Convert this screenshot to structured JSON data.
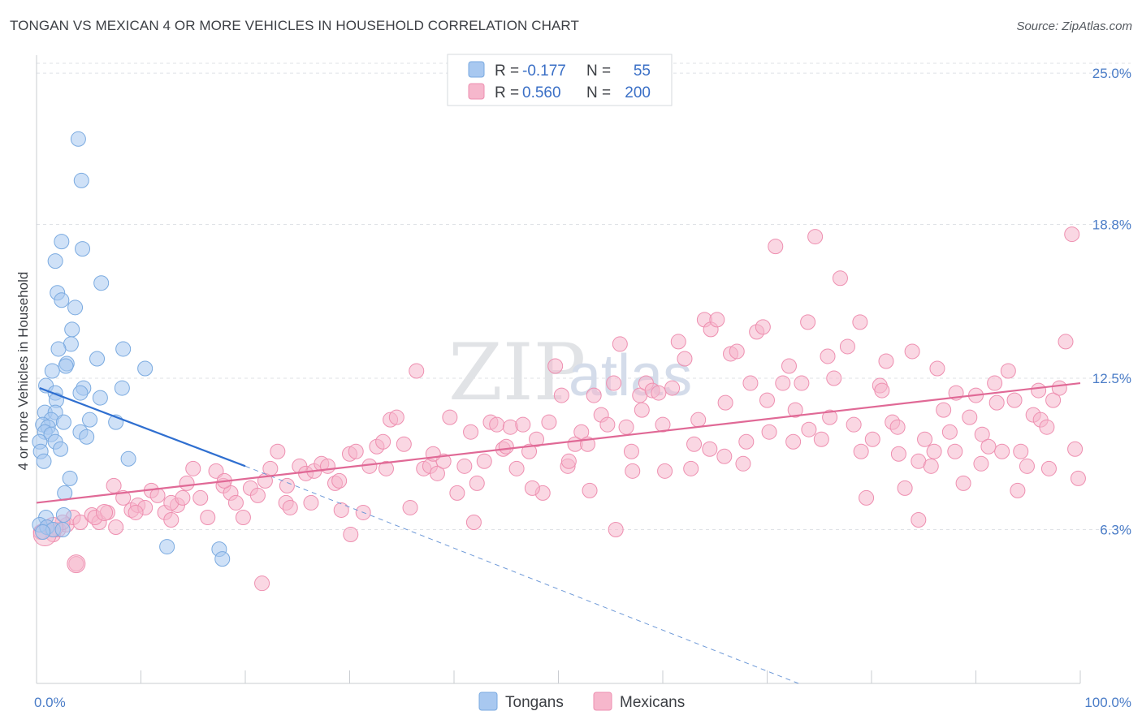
{
  "header": {
    "title": "TONGAN VS MEXICAN 4 OR MORE VEHICLES IN HOUSEHOLD CORRELATION CHART",
    "source": "Source: ZipAtlas.com"
  },
  "watermark": {
    "zip": "ZIP",
    "atlas": "atlas"
  },
  "legend": {
    "rows": [
      {
        "r_label": "R =",
        "r_value": "-0.177",
        "n_label": "N =",
        "n_value": "55",
        "color": "#a8c8f0"
      },
      {
        "r_label": "R =",
        "r_value": "0.560",
        "n_label": "N =",
        "n_value": "200",
        "color": "#f6b7cc"
      }
    ]
  },
  "bottom_legend": [
    {
      "label": "Tongans",
      "color": "#a8c8f0"
    },
    {
      "label": "Mexicans",
      "color": "#f6b7cc"
    }
  ],
  "chart_data": {
    "type": "scatter",
    "title": "TONGAN VS MEXICAN 4 OR MORE VEHICLES IN HOUSEHOLD CORRELATION CHART",
    "xlabel": "",
    "ylabel": "4 or more Vehicles in Household",
    "xlim": [
      0,
      100
    ],
    "ylim": [
      0,
      26.0
    ],
    "x_tick_labels": [
      "0.0%",
      "100.0%"
    ],
    "y_ticks": [
      6.3,
      12.5,
      18.8,
      25.0
    ],
    "y_tick_labels": [
      "6.3%",
      "12.5%",
      "18.8%",
      "25.0%"
    ],
    "grid": true,
    "legend_position": "top-center",
    "series": [
      {
        "name": "Tongans",
        "color": "#a8c8f0",
        "stroke": "#7aaae0",
        "trend": {
          "x": [
            0.3,
            20
          ],
          "y": [
            12.1,
            8.9
          ],
          "color": "#2f6fd0",
          "dashed_extension": {
            "x": [
              20,
              73
            ],
            "y": [
              8.9,
              0.0
            ]
          }
        },
        "points": [
          [
            4.0,
            22.3
          ],
          [
            4.3,
            20.6
          ],
          [
            2.4,
            18.1
          ],
          [
            4.4,
            17.8
          ],
          [
            1.8,
            17.3
          ],
          [
            6.2,
            16.4
          ],
          [
            2.0,
            16.0
          ],
          [
            2.4,
            15.7
          ],
          [
            3.7,
            15.4
          ],
          [
            3.4,
            14.5
          ],
          [
            3.3,
            13.9
          ],
          [
            2.1,
            13.7
          ],
          [
            8.3,
            13.7
          ],
          [
            5.8,
            13.3
          ],
          [
            2.9,
            13.1
          ],
          [
            2.8,
            13.0
          ],
          [
            1.5,
            12.8
          ],
          [
            10.4,
            12.9
          ],
          [
            0.9,
            12.2
          ],
          [
            4.5,
            12.1
          ],
          [
            8.2,
            12.1
          ],
          [
            1.8,
            11.9
          ],
          [
            4.2,
            11.9
          ],
          [
            6.1,
            11.7
          ],
          [
            1.9,
            11.6
          ],
          [
            0.8,
            11.1
          ],
          [
            1.8,
            11.1
          ],
          [
            1.4,
            10.8
          ],
          [
            2.6,
            10.7
          ],
          [
            5.1,
            10.8
          ],
          [
            7.6,
            10.7
          ],
          [
            0.6,
            10.6
          ],
          [
            1.1,
            10.5
          ],
          [
            0.8,
            10.3
          ],
          [
            4.2,
            10.3
          ],
          [
            1.4,
            10.2
          ],
          [
            4.8,
            10.1
          ],
          [
            0.3,
            9.9
          ],
          [
            1.8,
            9.9
          ],
          [
            2.3,
            9.6
          ],
          [
            0.4,
            9.5
          ],
          [
            0.7,
            9.1
          ],
          [
            8.8,
            9.2
          ],
          [
            3.2,
            8.4
          ],
          [
            2.7,
            7.8
          ],
          [
            0.9,
            6.8
          ],
          [
            2.6,
            6.9
          ],
          [
            0.3,
            6.5
          ],
          [
            1.0,
            6.4
          ],
          [
            1.6,
            6.3
          ],
          [
            0.6,
            6.2
          ],
          [
            2.5,
            6.3
          ],
          [
            12.5,
            5.6
          ],
          [
            17.5,
            5.5
          ],
          [
            17.8,
            5.1
          ]
        ]
      },
      {
        "name": "Mexicans",
        "color": "#f6b7cc",
        "stroke": "#ee8fb0",
        "trend": {
          "x": [
            0,
            100
          ],
          "y": [
            7.4,
            12.3
          ],
          "color": "#e06996"
        },
        "points": [
          [
            0.4,
            6.2
          ],
          [
            1.0,
            6.4
          ],
          [
            1.6,
            6.1
          ],
          [
            2.1,
            6.3
          ],
          [
            2.9,
            6.5
          ],
          [
            3.5,
            6.8
          ],
          [
            4.2,
            6.6
          ],
          [
            5.3,
            6.9
          ],
          [
            6.0,
            6.6
          ],
          [
            6.8,
            7.0
          ],
          [
            7.6,
            6.4
          ],
          [
            8.3,
            7.6
          ],
          [
            9.1,
            7.1
          ],
          [
            9.7,
            7.3
          ],
          [
            10.4,
            7.2
          ],
          [
            11.0,
            7.9
          ],
          [
            11.6,
            7.7
          ],
          [
            12.3,
            7.0
          ],
          [
            12.9,
            6.7
          ],
          [
            13.5,
            7.3
          ],
          [
            14.4,
            8.2
          ],
          [
            15.0,
            8.8
          ],
          [
            15.7,
            7.6
          ],
          [
            16.4,
            6.8
          ],
          [
            17.2,
            8.7
          ],
          [
            17.9,
            8.1
          ],
          [
            18.6,
            7.8
          ],
          [
            19.1,
            7.4
          ],
          [
            19.8,
            6.8
          ],
          [
            20.5,
            8.0
          ],
          [
            21.2,
            7.7
          ],
          [
            21.9,
            8.3
          ],
          [
            22.4,
            8.8
          ],
          [
            23.1,
            9.5
          ],
          [
            23.9,
            7.4
          ],
          [
            24.3,
            7.2
          ],
          [
            25.2,
            8.9
          ],
          [
            25.8,
            8.6
          ],
          [
            26.6,
            8.7
          ],
          [
            27.3,
            9.0
          ],
          [
            27.9,
            8.9
          ],
          [
            28.6,
            8.2
          ],
          [
            29.2,
            7.1
          ],
          [
            30.0,
            9.4
          ],
          [
            30.6,
            9.5
          ],
          [
            31.3,
            7.0
          ],
          [
            31.9,
            8.9
          ],
          [
            32.6,
            9.7
          ],
          [
            33.2,
            9.9
          ],
          [
            33.9,
            10.8
          ],
          [
            34.5,
            10.9
          ],
          [
            35.2,
            9.8
          ],
          [
            35.8,
            7.2
          ],
          [
            36.4,
            12.8
          ],
          [
            37.1,
            8.8
          ],
          [
            37.7,
            8.9
          ],
          [
            38.4,
            8.6
          ],
          [
            39.0,
            9.1
          ],
          [
            39.6,
            10.9
          ],
          [
            40.3,
            7.8
          ],
          [
            41.0,
            8.9
          ],
          [
            41.6,
            10.3
          ],
          [
            42.2,
            8.2
          ],
          [
            42.9,
            9.1
          ],
          [
            43.5,
            10.7
          ],
          [
            44.1,
            10.6
          ],
          [
            44.7,
            9.6
          ],
          [
            45.4,
            10.5
          ],
          [
            46.0,
            8.8
          ],
          [
            46.6,
            10.6
          ],
          [
            47.2,
            9.5
          ],
          [
            47.9,
            10.0
          ],
          [
            48.5,
            7.8
          ],
          [
            49.1,
            10.7
          ],
          [
            49.7,
            13.0
          ],
          [
            50.3,
            11.8
          ],
          [
            50.9,
            8.9
          ],
          [
            51.6,
            9.8
          ],
          [
            52.2,
            10.3
          ],
          [
            52.8,
            9.8
          ],
          [
            53.4,
            11.8
          ],
          [
            54.1,
            11.0
          ],
          [
            54.7,
            10.6
          ],
          [
            55.3,
            12.3
          ],
          [
            55.9,
            13.9
          ],
          [
            56.5,
            10.5
          ],
          [
            57.1,
            8.7
          ],
          [
            57.8,
            11.8
          ],
          [
            58.4,
            12.3
          ],
          [
            59.0,
            12.0
          ],
          [
            59.6,
            11.9
          ],
          [
            60.2,
            8.7
          ],
          [
            60.9,
            12.1
          ],
          [
            61.5,
            14.0
          ],
          [
            62.1,
            13.3
          ],
          [
            62.7,
            8.8
          ],
          [
            63.4,
            10.8
          ],
          [
            64.0,
            14.9
          ],
          [
            64.6,
            14.5
          ],
          [
            65.2,
            14.9
          ],
          [
            65.9,
            9.3
          ],
          [
            66.5,
            13.5
          ],
          [
            67.1,
            13.6
          ],
          [
            67.7,
            9.0
          ],
          [
            68.4,
            12.3
          ],
          [
            69.0,
            14.4
          ],
          [
            69.6,
            14.6
          ],
          [
            70.2,
            10.3
          ],
          [
            70.8,
            17.9
          ],
          [
            71.5,
            12.3
          ],
          [
            72.1,
            13.0
          ],
          [
            72.7,
            11.2
          ],
          [
            73.3,
            12.3
          ],
          [
            73.9,
            14.8
          ],
          [
            74.6,
            18.3
          ],
          [
            75.2,
            10.0
          ],
          [
            75.8,
            13.4
          ],
          [
            76.4,
            12.5
          ],
          [
            77.0,
            16.6
          ],
          [
            77.7,
            13.8
          ],
          [
            78.3,
            10.6
          ],
          [
            78.9,
            14.8
          ],
          [
            79.5,
            7.6
          ],
          [
            80.1,
            10.0
          ],
          [
            80.8,
            12.2
          ],
          [
            81.4,
            13.2
          ],
          [
            82.0,
            10.7
          ],
          [
            82.6,
            9.4
          ],
          [
            83.2,
            8.0
          ],
          [
            83.9,
            13.6
          ],
          [
            84.5,
            9.1
          ],
          [
            85.1,
            10.0
          ],
          [
            85.7,
            8.9
          ],
          [
            86.3,
            12.9
          ],
          [
            86.9,
            11.2
          ],
          [
            87.5,
            10.3
          ],
          [
            88.1,
            11.9
          ],
          [
            88.8,
            8.2
          ],
          [
            89.4,
            10.9
          ],
          [
            90.0,
            11.8
          ],
          [
            90.6,
            10.2
          ],
          [
            91.2,
            9.7
          ],
          [
            91.8,
            12.3
          ],
          [
            92.5,
            9.5
          ],
          [
            93.1,
            12.8
          ],
          [
            93.7,
            11.6
          ],
          [
            94.3,
            9.5
          ],
          [
            94.9,
            8.9
          ],
          [
            95.5,
            11.0
          ],
          [
            96.2,
            10.8
          ],
          [
            96.8,
            10.5
          ],
          [
            97.4,
            11.6
          ],
          [
            98.0,
            12.1
          ],
          [
            98.6,
            14.0
          ],
          [
            99.2,
            18.4
          ],
          [
            99.5,
            9.6
          ],
          [
            3.8,
            4.9
          ],
          [
            21.6,
            4.1
          ],
          [
            30.1,
            6.1
          ],
          [
            55.5,
            6.3
          ],
          [
            84.5,
            6.7
          ],
          [
            12.9,
            7.4
          ],
          [
            7.4,
            8.1
          ],
          [
            26.3,
            7.4
          ],
          [
            41.9,
            6.6
          ],
          [
            47.5,
            8.0
          ],
          [
            63.0,
            9.8
          ],
          [
            68.0,
            9.9
          ],
          [
            72.5,
            9.9
          ],
          [
            76.0,
            10.9
          ],
          [
            79.0,
            9.5
          ],
          [
            82.5,
            10.5
          ],
          [
            86.0,
            9.5
          ],
          [
            90.5,
            9.0
          ],
          [
            94.0,
            7.9
          ],
          [
            97.0,
            8.8
          ],
          [
            99.8,
            8.4
          ],
          [
            57.0,
            9.5
          ],
          [
            60.0,
            10.6
          ],
          [
            66.0,
            11.5
          ],
          [
            70.0,
            11.6
          ],
          [
            74.0,
            10.4
          ],
          [
            81.0,
            12.0
          ],
          [
            88.0,
            9.5
          ],
          [
            92.0,
            11.5
          ],
          [
            96.0,
            12.0
          ],
          [
            2.5,
            6.6
          ],
          [
            5.6,
            6.8
          ],
          [
            9.5,
            7.0
          ],
          [
            14.0,
            7.6
          ],
          [
            18.0,
            8.3
          ],
          [
            24.0,
            8.1
          ],
          [
            29.0,
            8.3
          ],
          [
            33.5,
            8.8
          ],
          [
            38.0,
            9.4
          ],
          [
            45.0,
            9.7
          ],
          [
            51.0,
            9.1
          ],
          [
            53.0,
            7.9
          ],
          [
            58.0,
            11.2
          ],
          [
            64.5,
            9.6
          ]
        ]
      }
    ]
  }
}
